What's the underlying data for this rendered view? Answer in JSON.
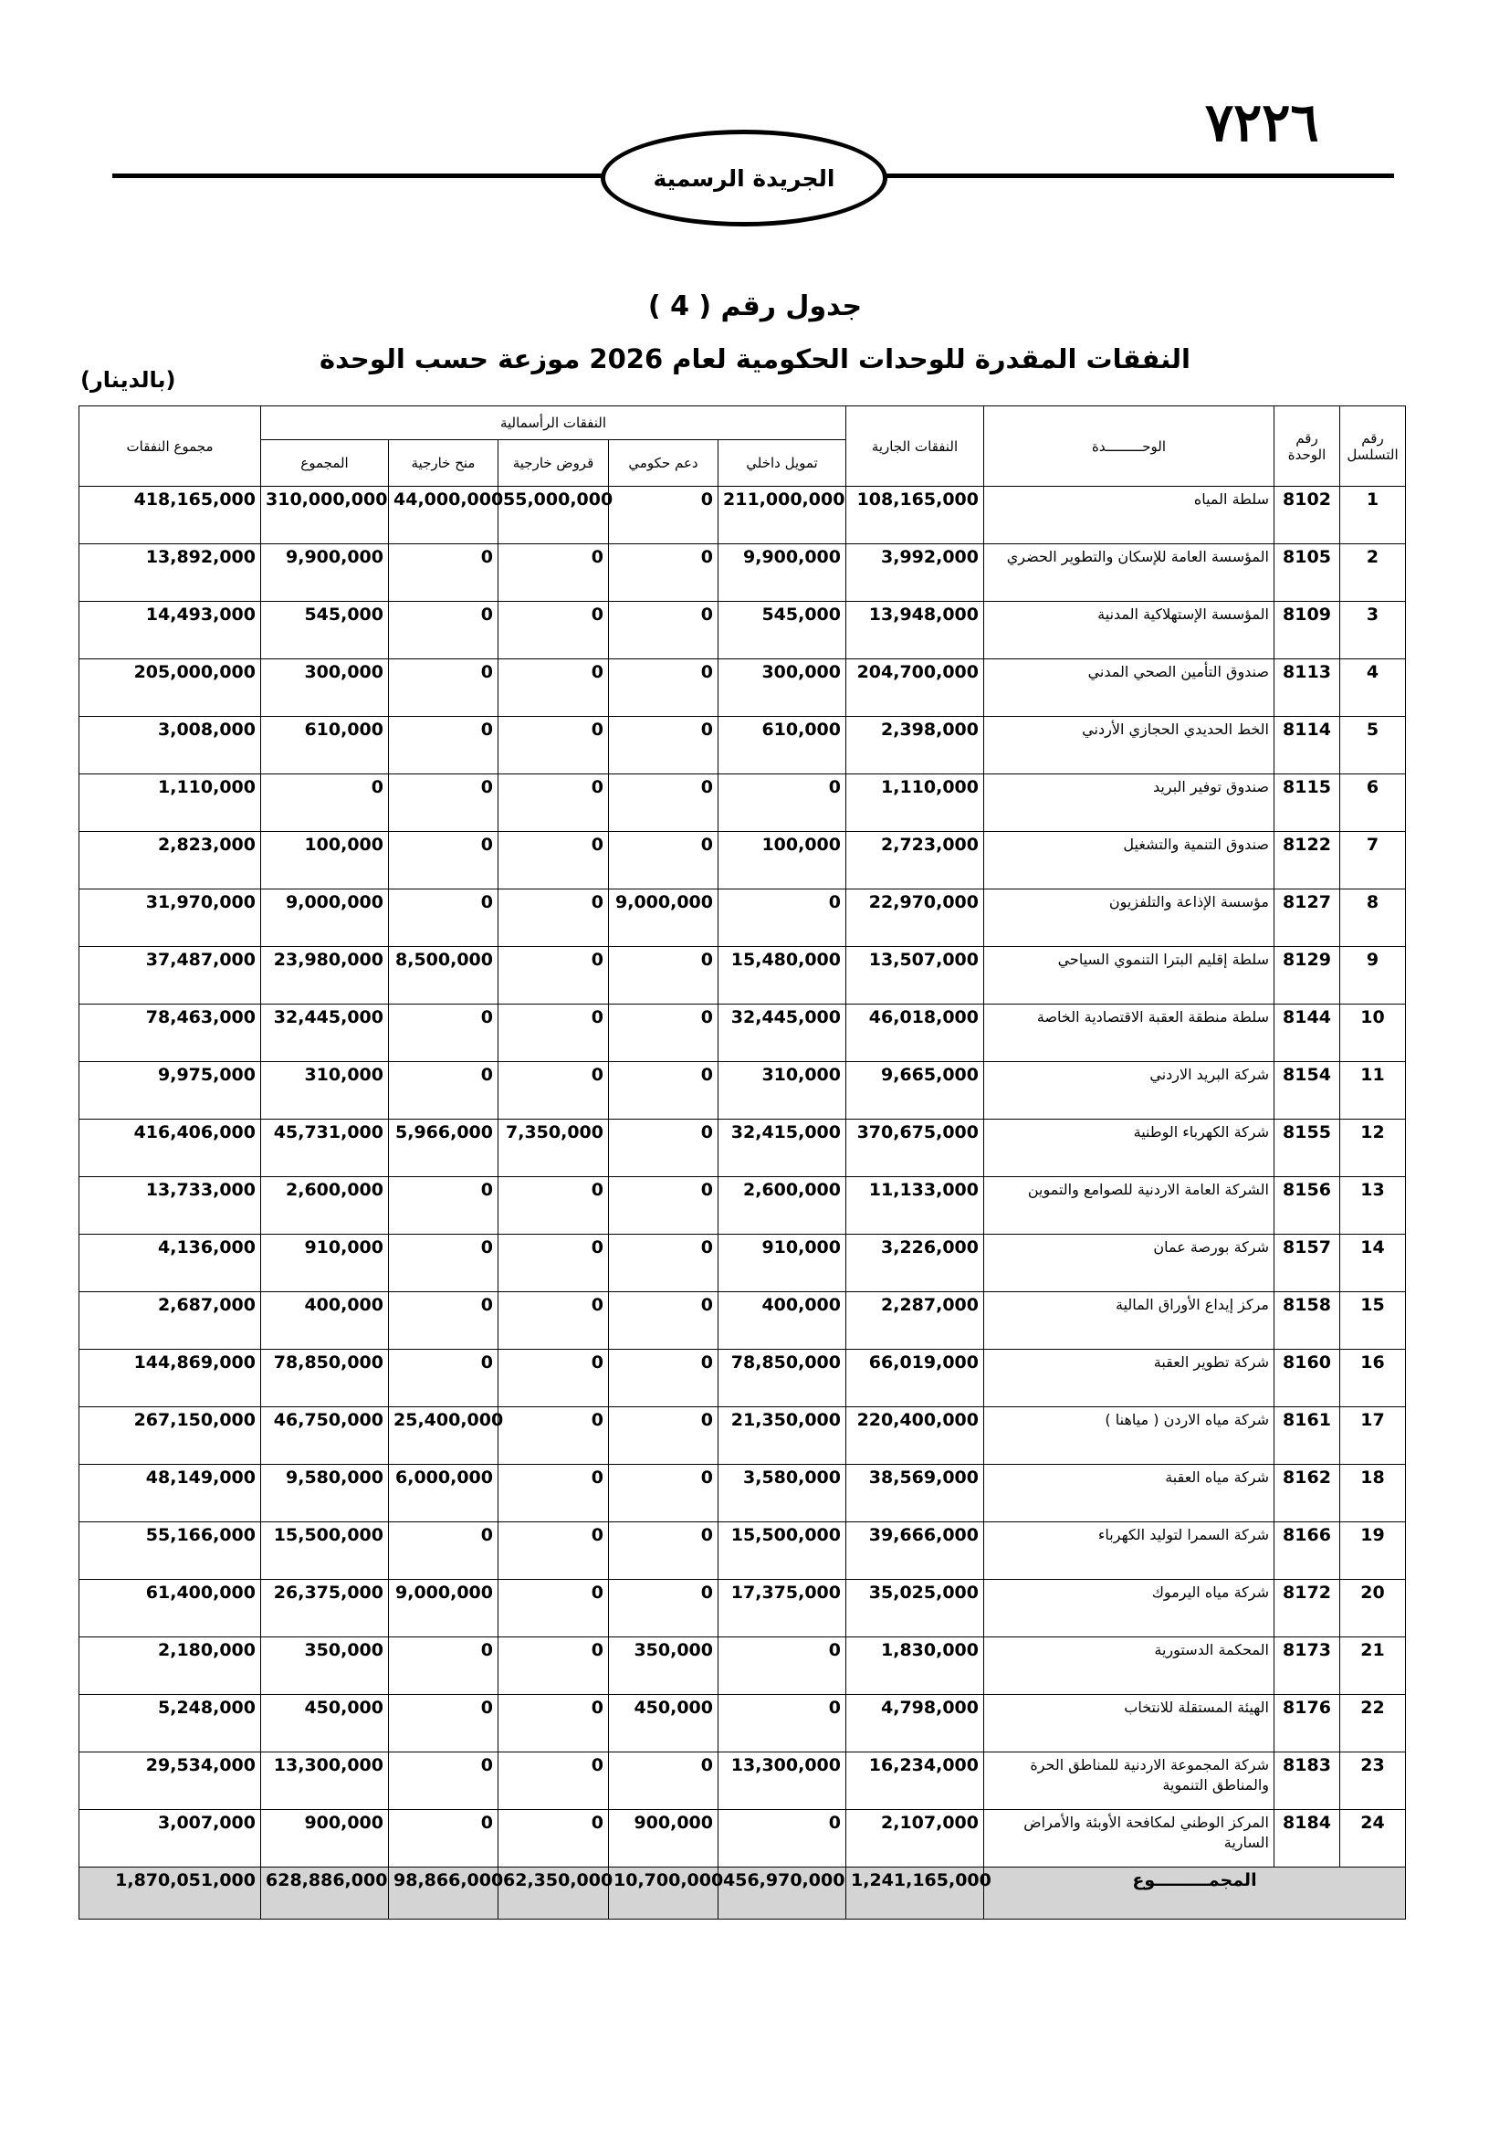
{
  "header": {
    "page_number": "٧٢٢٦",
    "journal": "الجريدة الرسمية"
  },
  "title": "جدول رقم ( 4 )",
  "subtitle": "النفقات المقدرة للوحدات الحكومية لعام 2026 موزعة حسب الوحدة",
  "unit_note": "(بالدينار)",
  "table": {
    "headers": {
      "seq": "رقم التسلسل",
      "unit_no": "رقم الوحدة",
      "unit": "الوحـــــــــدة",
      "current": "النفقات الجارية",
      "capital": "النفقات الرأسمالية",
      "internal": "تمويل داخلي",
      "gov_support": "دعم حكومي",
      "loans": "قروض خارجية",
      "grants": "منح خارجية",
      "capital_total": "المجموع",
      "total": "مجموع النفقات"
    },
    "rows": [
      [
        "1",
        "8102",
        "سلطة المياه",
        "108,165,000",
        "211,000,000",
        "0",
        "55,000,000",
        "44,000,000",
        "310,000,000",
        "418,165,000"
      ],
      [
        "2",
        "8105",
        "المؤسسة العامة للإسكان والتطوير الحضري",
        "3,992,000",
        "9,900,000",
        "0",
        "0",
        "0",
        "9,900,000",
        "13,892,000"
      ],
      [
        "3",
        "8109",
        "المؤسسة الإستهلاكية المدنية",
        "13,948,000",
        "545,000",
        "0",
        "0",
        "0",
        "545,000",
        "14,493,000"
      ],
      [
        "4",
        "8113",
        "صندوق التأمين الصحي المدني",
        "204,700,000",
        "300,000",
        "0",
        "0",
        "0",
        "300,000",
        "205,000,000"
      ],
      [
        "5",
        "8114",
        "الخط الحديدي الحجازي الأردني",
        "2,398,000",
        "610,000",
        "0",
        "0",
        "0",
        "610,000",
        "3,008,000"
      ],
      [
        "6",
        "8115",
        "صندوق توفير البريد",
        "1,110,000",
        "0",
        "0",
        "0",
        "0",
        "0",
        "1,110,000"
      ],
      [
        "7",
        "8122",
        "صندوق التنمية والتشغيل",
        "2,723,000",
        "100,000",
        "0",
        "0",
        "0",
        "100,000",
        "2,823,000"
      ],
      [
        "8",
        "8127",
        "مؤسسة الإذاعة والتلفزيون",
        "22,970,000",
        "0",
        "9,000,000",
        "0",
        "0",
        "9,000,000",
        "31,970,000"
      ],
      [
        "9",
        "8129",
        "سلطة إقليم البترا التنموي السياحي",
        "13,507,000",
        "15,480,000",
        "0",
        "0",
        "8,500,000",
        "23,980,000",
        "37,487,000"
      ],
      [
        "10",
        "8144",
        "سلطة منطقة العقبة الاقتصادية الخاصة",
        "46,018,000",
        "32,445,000",
        "0",
        "0",
        "0",
        "32,445,000",
        "78,463,000"
      ],
      [
        "11",
        "8154",
        "شركة البريد الاردني",
        "9,665,000",
        "310,000",
        "0",
        "0",
        "0",
        "310,000",
        "9,975,000"
      ],
      [
        "12",
        "8155",
        "شركة الكهرباء الوطنية",
        "370,675,000",
        "32,415,000",
        "0",
        "7,350,000",
        "5,966,000",
        "45,731,000",
        "416,406,000"
      ],
      [
        "13",
        "8156",
        "الشركة العامة الاردنية للصوامع والتموين",
        "11,133,000",
        "2,600,000",
        "0",
        "0",
        "0",
        "2,600,000",
        "13,733,000"
      ],
      [
        "14",
        "8157",
        "شركة بورصة عمان",
        "3,226,000",
        "910,000",
        "0",
        "0",
        "0",
        "910,000",
        "4,136,000"
      ],
      [
        "15",
        "8158",
        "مركز إيداع الأوراق المالية",
        "2,287,000",
        "400,000",
        "0",
        "0",
        "0",
        "400,000",
        "2,687,000"
      ],
      [
        "16",
        "8160",
        "شركة تطوير العقبة",
        "66,019,000",
        "78,850,000",
        "0",
        "0",
        "0",
        "78,850,000",
        "144,869,000"
      ],
      [
        "17",
        "8161",
        "شركة مياه الاردن ( مياهنا )",
        "220,400,000",
        "21,350,000",
        "0",
        "0",
        "25,400,000",
        "46,750,000",
        "267,150,000"
      ],
      [
        "18",
        "8162",
        "شركة مياه العقبة",
        "38,569,000",
        "3,580,000",
        "0",
        "0",
        "6,000,000",
        "9,580,000",
        "48,149,000"
      ],
      [
        "19",
        "8166",
        "شركة السمرا لتوليد الكهرباء",
        "39,666,000",
        "15,500,000",
        "0",
        "0",
        "0",
        "15,500,000",
        "55,166,000"
      ],
      [
        "20",
        "8172",
        "شركة مياه اليرموك",
        "35,025,000",
        "17,375,000",
        "0",
        "0",
        "9,000,000",
        "26,375,000",
        "61,400,000"
      ],
      [
        "21",
        "8173",
        "المحكمة الدستورية",
        "1,830,000",
        "0",
        "350,000",
        "0",
        "0",
        "350,000",
        "2,180,000"
      ],
      [
        "22",
        "8176",
        "الهيئة المستقلة للانتخاب",
        "4,798,000",
        "0",
        "450,000",
        "0",
        "0",
        "450,000",
        "5,248,000"
      ],
      [
        "23",
        "8183",
        "شركة المجموعة الاردنية للمناطق الحرة والمناطق التنموية",
        "16,234,000",
        "13,300,000",
        "0",
        "0",
        "0",
        "13,300,000",
        "29,534,000"
      ],
      [
        "24",
        "8184",
        "المركز الوطني لمكافحة الأوبئة والأمراض السارية",
        "2,107,000",
        "0",
        "900,000",
        "0",
        "0",
        "900,000",
        "3,007,000"
      ]
    ],
    "total_row": {
      "label": "المجمـــــــــوع",
      "values": [
        "1,241,165,000",
        "456,970,000",
        "10,700,000",
        "62,350,000",
        "98,866,000",
        "628,886,000",
        "1,870,051,000"
      ]
    }
  }
}
